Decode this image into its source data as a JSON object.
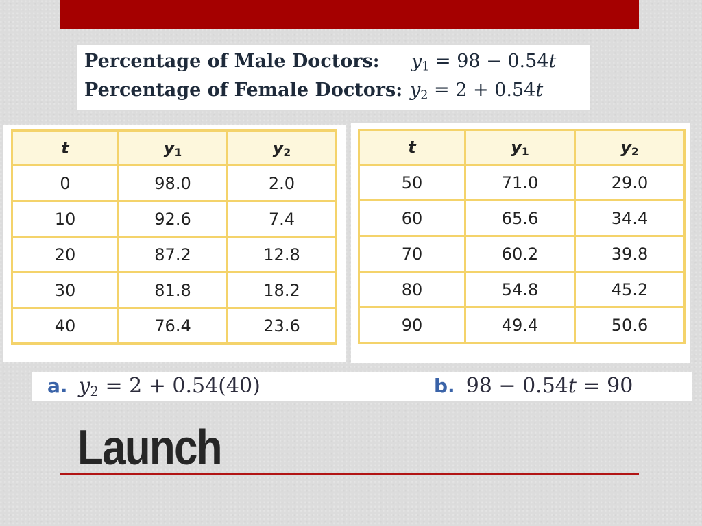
{
  "colors": {
    "accent_bar": "#a50000",
    "title_rule": "#b11414",
    "table_border": "#f4d36b",
    "table_header_bg": "#fdf7dc",
    "answer_label": "#3a63a8"
  },
  "formulas": {
    "male": {
      "label": "Percentage of Male Doctors:",
      "var": "y",
      "sub": "1",
      "rhs": "= 98 − 0.54",
      "tvar": "t"
    },
    "female": {
      "label": "Percentage of Female Doctors:",
      "var": "y",
      "sub": "2",
      "rhs": "= 2 + 0.54",
      "tvar": "t"
    }
  },
  "tables": {
    "headers": {
      "t": "t",
      "y1": "y",
      "y1_sub": "1",
      "y2": "y",
      "y2_sub": "2"
    },
    "left_rows": [
      {
        "t": "0",
        "y1": "98.0",
        "y2": "2.0"
      },
      {
        "t": "10",
        "y1": "92.6",
        "y2": "7.4"
      },
      {
        "t": "20",
        "y1": "87.2",
        "y2": "12.8"
      },
      {
        "t": "30",
        "y1": "81.8",
        "y2": "18.2"
      },
      {
        "t": "40",
        "y1": "76.4",
        "y2": "23.6"
      }
    ],
    "right_rows": [
      {
        "t": "50",
        "y1": "71.0",
        "y2": "29.0"
      },
      {
        "t": "60",
        "y1": "65.6",
        "y2": "34.4"
      },
      {
        "t": "70",
        "y1": "60.2",
        "y2": "39.8"
      },
      {
        "t": "80",
        "y1": "54.8",
        "y2": "45.2"
      },
      {
        "t": "90",
        "y1": "49.4",
        "y2": "50.6"
      }
    ]
  },
  "answers": {
    "a": {
      "label": "a.",
      "var": "y",
      "sub": "2",
      "rest": " = 2 + 0.54(40)"
    },
    "b": {
      "label": "b.",
      "pre": "98 − 0.54",
      "tvar": "t",
      "post": " = 90"
    }
  },
  "slide": {
    "title": "Launch"
  }
}
